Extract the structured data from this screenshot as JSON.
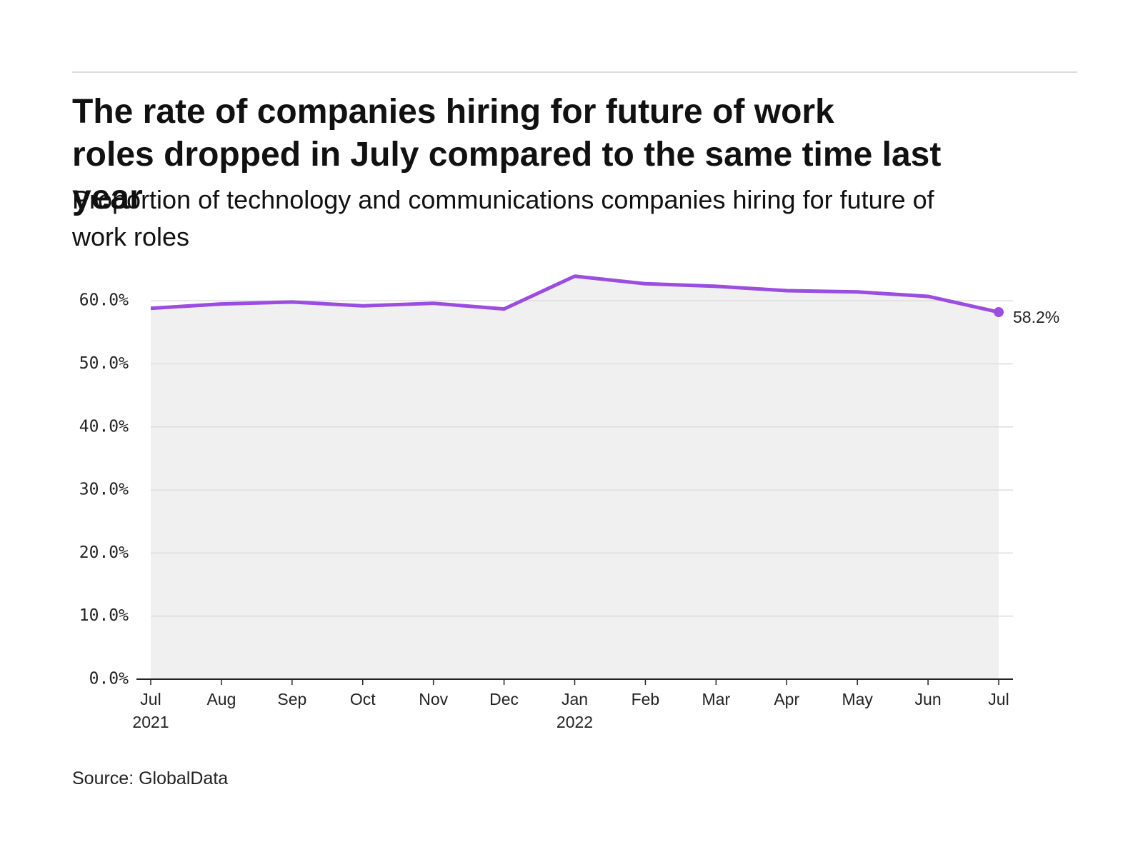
{
  "chart_data": {
    "type": "line",
    "title": "The rate of companies hiring for future of work roles dropped in July compared to the same time last year",
    "subtitle": "Proportion of technology and communications companies hiring for future of work roles",
    "source": "Source: GlobalData",
    "categories": [
      "Jul 2021",
      "Aug",
      "Sep",
      "Oct",
      "Nov",
      "Dec",
      "Jan 2022",
      "Feb",
      "Mar",
      "Apr",
      "May",
      "Jun",
      "Jul"
    ],
    "series": [
      {
        "name": "Proportion hiring for future of work roles",
        "color": "#9b4de0",
        "values": [
          58.8,
          59.5,
          59.8,
          59.2,
          59.6,
          58.7,
          63.9,
          62.7,
          62.3,
          61.6,
          61.4,
          60.7,
          58.2
        ],
        "value_labels": [
          null,
          null,
          null,
          null,
          null,
          null,
          null,
          null,
          null,
          null,
          null,
          null,
          "58.2%"
        ]
      }
    ],
    "ylim": [
      0,
      65
    ],
    "yticks": [
      {
        "value": 0,
        "label": "0.0%"
      },
      {
        "value": 10,
        "label": "10.0%"
      },
      {
        "value": 20,
        "label": "20.0%"
      },
      {
        "value": 30,
        "label": "30.0%"
      },
      {
        "value": 40,
        "label": "40.0%"
      },
      {
        "value": 50,
        "label": "50.0%"
      },
      {
        "value": 60,
        "label": "60.0%"
      }
    ],
    "grid": true
  }
}
